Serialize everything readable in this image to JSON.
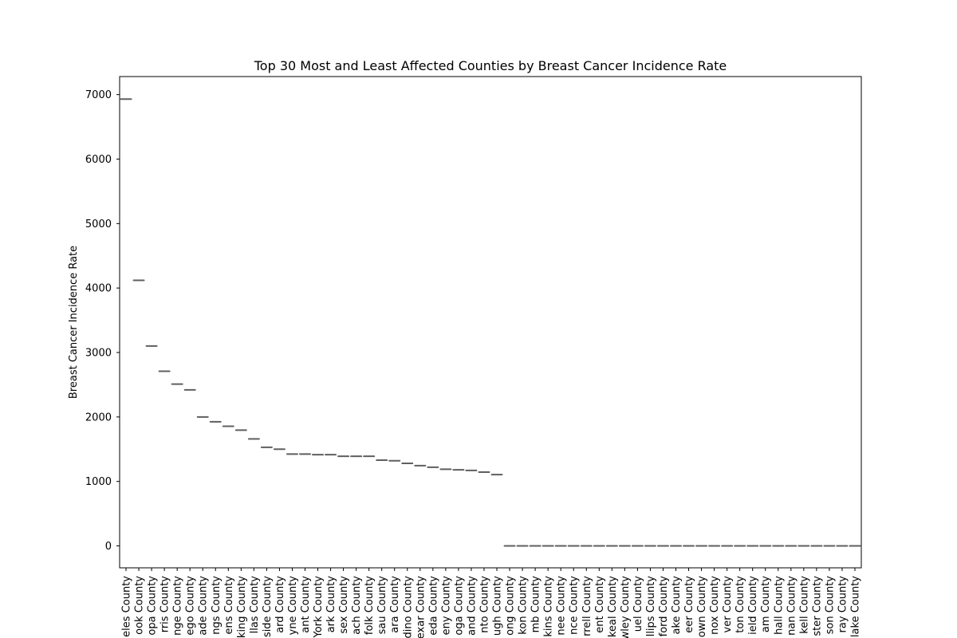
{
  "chart_data": {
    "type": "violin",
    "title": "Top 30 Most and Least Affected Counties by Breast Cancer Incidence Rate",
    "xlabel": "",
    "ylabel": "Breast Cancer Incidence Rate",
    "ylim": [
      -340,
      7280
    ],
    "yticks": [
      0,
      1000,
      2000,
      3000,
      4000,
      5000,
      6000,
      7000
    ],
    "grid": false,
    "categories": [
      "eles County",
      "ook County",
      "opa County",
      "rris County",
      "nge County",
      "ego County",
      "ade County",
      "ngs County",
      "ens County",
      "king County",
      "llas County",
      "side County",
      "ard County",
      "yne County",
      "ant County",
      "York County",
      "ark County",
      "sex County",
      "ach County",
      "folk County",
      "sau County",
      "ara County",
      "dino County",
      "exar County",
      "eda County",
      "eny County",
      "oga County",
      "and County",
      "nto County",
      "ugh County",
      "ong County",
      "kon County",
      "mb County",
      "kins County",
      "nee County",
      "nce County",
      "rrell County",
      "ent County",
      "keal County",
      "wley County",
      "uel County",
      "llips County",
      "ford County",
      "ake County",
      "eer County",
      "own County",
      "nox County",
      "ver County",
      "ton County",
      "ield County",
      "am County",
      "hall County",
      "nan County",
      "kell County",
      "ster County",
      "son County",
      "ray County",
      "lake County"
    ],
    "values": [
      6930,
      4120,
      3100,
      2710,
      2510,
      2420,
      2000,
      1925,
      1855,
      1795,
      1660,
      1530,
      1500,
      1425,
      1425,
      1415,
      1415,
      1390,
      1390,
      1390,
      1330,
      1320,
      1280,
      1245,
      1220,
      1190,
      1180,
      1170,
      1145,
      1105,
      0,
      0,
      0,
      0,
      0,
      0,
      0,
      0,
      0,
      0,
      0,
      0,
      0,
      0,
      0,
      0,
      0,
      0,
      0,
      0,
      0,
      0,
      0,
      0,
      0,
      0,
      0,
      0
    ],
    "mark_color": "#5f5f5f"
  }
}
